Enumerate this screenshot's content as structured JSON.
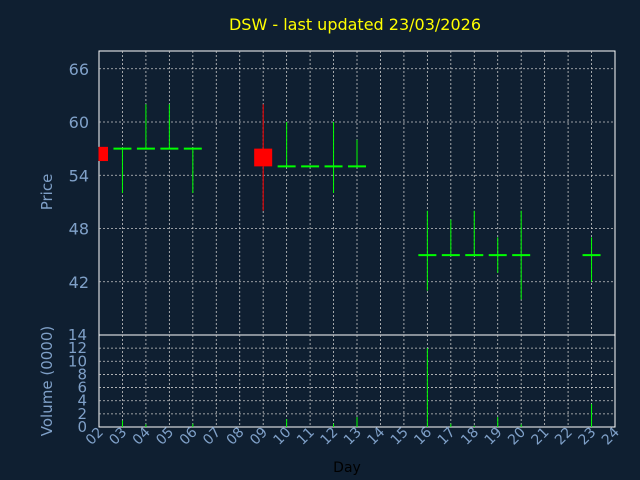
{
  "title": "DSW - last updated 23/03/2026",
  "colors": {
    "background": "#0f1f31",
    "title": "#ffff00",
    "axis_text": "#7fa0c8",
    "frame": "#ffffff",
    "grid": "#c8c8c8",
    "up": "#00ff00",
    "down": "#ff0000"
  },
  "chart_data": [
    {
      "type": "candlestick",
      "ylabel": "Price",
      "ylim": [
        36,
        68
      ],
      "yticks": [
        "42",
        "48",
        "54",
        "60",
        "66"
      ],
      "grid": true,
      "candles": [
        {
          "day": "02",
          "open": 57.2,
          "close": 55.6,
          "high": 57.2,
          "low": 55.6
        },
        {
          "day": "03",
          "open": 57.0,
          "close": 57.0,
          "high": 57.0,
          "low": 52.0
        },
        {
          "day": "04",
          "open": 57.0,
          "close": 57.0,
          "high": 62.0,
          "low": 57.0
        },
        {
          "day": "05",
          "open": 57.0,
          "close": 57.0,
          "high": 62.0,
          "low": 57.0
        },
        {
          "day": "06",
          "open": 57.0,
          "close": 57.0,
          "high": 57.0,
          "low": 52.0
        },
        {
          "day": "09",
          "open": 57.0,
          "close": 55.0,
          "high": 62.0,
          "low": 50.0
        },
        {
          "day": "10",
          "open": 55.0,
          "close": 55.0,
          "high": 60.0,
          "low": 55.0
        },
        {
          "day": "11",
          "open": 55.0,
          "close": 55.0,
          "high": 55.0,
          "low": 55.0
        },
        {
          "day": "12",
          "open": 55.0,
          "close": 55.0,
          "high": 60.0,
          "low": 52.0
        },
        {
          "day": "13",
          "open": 55.0,
          "close": 55.0,
          "high": 58.0,
          "low": 55.0
        },
        {
          "day": "16",
          "open": 45.0,
          "close": 45.0,
          "high": 50.0,
          "low": 41.0
        },
        {
          "day": "17",
          "open": 45.0,
          "close": 45.0,
          "high": 49.0,
          "low": 45.0
        },
        {
          "day": "18",
          "open": 45.0,
          "close": 45.0,
          "high": 50.0,
          "low": 45.0
        },
        {
          "day": "19",
          "open": 45.0,
          "close": 45.0,
          "high": 47.0,
          "low": 43.0
        },
        {
          "day": "20",
          "open": 45.0,
          "close": 45.0,
          "high": 50.0,
          "low": 40.0
        },
        {
          "day": "23",
          "open": 45.0,
          "close": 45.0,
          "high": 47.0,
          "low": 42.0
        }
      ]
    },
    {
      "type": "bar",
      "ylabel": "Volume (0000)",
      "xlabel": "Day",
      "ylim": [
        0,
        14
      ],
      "yticks": [
        "0",
        "2",
        "4",
        "6",
        "8",
        "10",
        "12",
        "14"
      ],
      "grid": true,
      "categories": [
        "02",
        "03",
        "04",
        "05",
        "06",
        "07",
        "08",
        "09",
        "10",
        "11",
        "12",
        "13",
        "14",
        "15",
        "16",
        "17",
        "18",
        "19",
        "20",
        "21",
        "22",
        "23",
        "24"
      ],
      "values": [
        0,
        1,
        0.4,
        0,
        0.5,
        0,
        0,
        0,
        1.2,
        0,
        0.5,
        1.5,
        0,
        0,
        12,
        0.5,
        0.2,
        1.5,
        0.4,
        0,
        0,
        3.5,
        0
      ]
    }
  ]
}
